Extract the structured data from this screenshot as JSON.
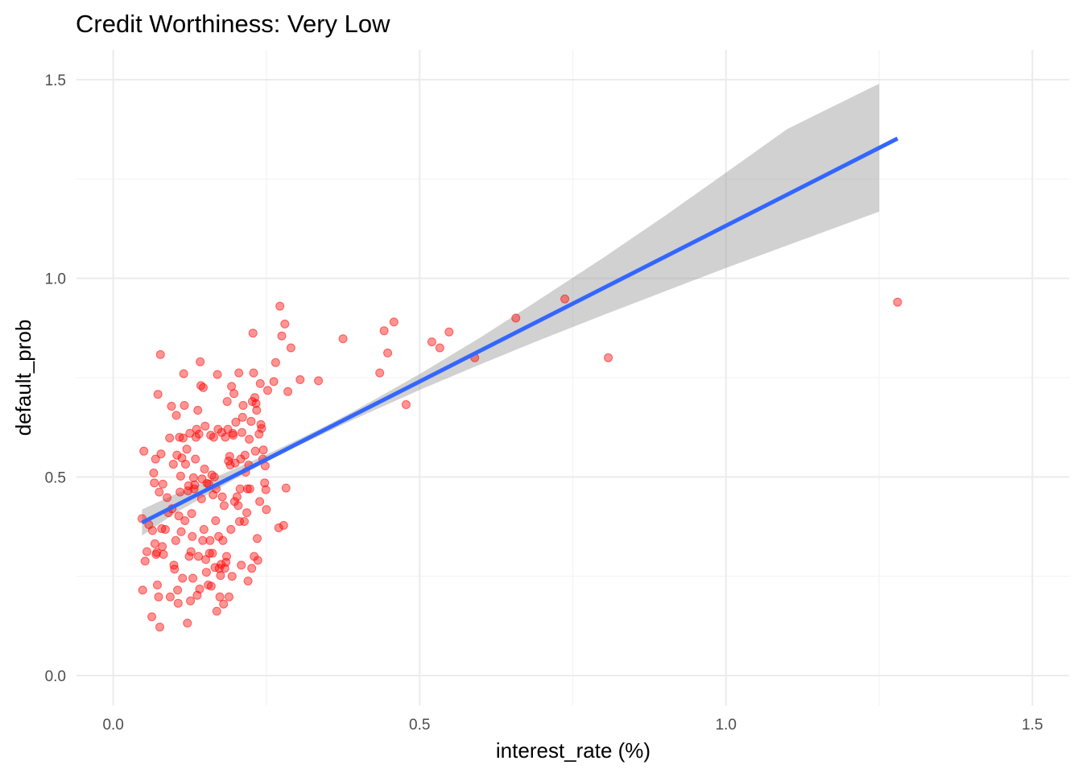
{
  "chart_data": {
    "type": "scatter",
    "title": "Credit Worthiness: Very Low",
    "xlabel": "interest_rate (%)",
    "ylabel": "default_prob",
    "xlim": [
      -0.06,
      1.56
    ],
    "ylim": [
      -0.075,
      1.575
    ],
    "x_ticks": [
      0.0,
      0.5,
      1.0,
      1.5
    ],
    "x_tick_labels": [
      "0.0",
      "0.5",
      "1.0",
      "1.5"
    ],
    "y_ticks": [
      0.0,
      0.5,
      1.0,
      1.5
    ],
    "y_tick_labels": [
      "0.0",
      "0.5",
      "1.0",
      "1.5"
    ],
    "grid": true,
    "legend": "none",
    "colors": {
      "points": "#ff0000",
      "fit_line": "#3366ff",
      "ribbon": "#999999"
    },
    "points": [
      [
        0.047,
        0.395
      ],
      [
        0.048,
        0.215
      ],
      [
        0.05,
        0.565
      ],
      [
        0.052,
        0.288
      ],
      [
        0.055,
        0.312
      ],
      [
        0.058,
        0.38
      ],
      [
        0.063,
        0.148
      ],
      [
        0.064,
        0.365
      ],
      [
        0.066,
        0.51
      ],
      [
        0.067,
        0.485
      ],
      [
        0.068,
        0.332
      ],
      [
        0.069,
        0.545
      ],
      [
        0.07,
        0.305
      ],
      [
        0.071,
        0.31
      ],
      [
        0.072,
        0.228
      ],
      [
        0.073,
        0.708
      ],
      [
        0.074,
        0.198
      ],
      [
        0.075,
        0.462
      ],
      [
        0.076,
        0.122
      ],
      [
        0.077,
        0.808
      ],
      [
        0.078,
        0.558
      ],
      [
        0.079,
        0.37
      ],
      [
        0.08,
        0.325
      ],
      [
        0.081,
        0.482
      ],
      [
        0.082,
        0.305
      ],
      [
        0.085,
        0.368
      ],
      [
        0.088,
        0.448
      ],
      [
        0.09,
        0.41
      ],
      [
        0.092,
        0.598
      ],
      [
        0.093,
        0.198
      ],
      [
        0.095,
        0.678
      ],
      [
        0.096,
        0.42
      ],
      [
        0.098,
        0.532
      ],
      [
        0.099,
        0.278
      ],
      [
        0.1,
        0.268
      ],
      [
        0.102,
        0.34
      ],
      [
        0.103,
        0.655
      ],
      [
        0.104,
        0.555
      ],
      [
        0.105,
        0.215
      ],
      [
        0.106,
        0.182
      ],
      [
        0.107,
        0.402
      ],
      [
        0.108,
        0.6
      ],
      [
        0.109,
        0.462
      ],
      [
        0.11,
        0.502
      ],
      [
        0.111,
        0.362
      ],
      [
        0.112,
        0.548
      ],
      [
        0.113,
        0.245
      ],
      [
        0.114,
        0.598
      ],
      [
        0.115,
        0.76
      ],
      [
        0.116,
        0.68
      ],
      [
        0.117,
        0.39
      ],
      [
        0.118,
        0.532
      ],
      [
        0.12,
        0.57
      ],
      [
        0.121,
        0.132
      ],
      [
        0.122,
        0.465
      ],
      [
        0.123,
        0.478
      ],
      [
        0.124,
        0.3
      ],
      [
        0.125,
        0.61
      ],
      [
        0.126,
        0.188
      ],
      [
        0.127,
        0.312
      ],
      [
        0.128,
        0.408
      ],
      [
        0.129,
        0.35
      ],
      [
        0.13,
        0.245
      ],
      [
        0.131,
        0.498
      ],
      [
        0.132,
        0.47
      ],
      [
        0.133,
        0.48
      ],
      [
        0.134,
        0.545
      ],
      [
        0.135,
        0.6
      ],
      [
        0.136,
        0.62
      ],
      [
        0.137,
        0.202
      ],
      [
        0.138,
        0.668
      ],
      [
        0.139,
        0.3
      ],
      [
        0.14,
        0.608
      ],
      [
        0.141,
        0.218
      ],
      [
        0.142,
        0.79
      ],
      [
        0.143,
        0.73
      ],
      [
        0.144,
        0.445
      ],
      [
        0.145,
        0.495
      ],
      [
        0.146,
        0.34
      ],
      [
        0.147,
        0.725
      ],
      [
        0.148,
        0.368
      ],
      [
        0.149,
        0.52
      ],
      [
        0.15,
        0.628
      ],
      [
        0.151,
        0.292
      ],
      [
        0.152,
        0.26
      ],
      [
        0.153,
        0.484
      ],
      [
        0.155,
        0.228
      ],
      [
        0.156,
        0.482
      ],
      [
        0.157,
        0.308
      ],
      [
        0.158,
        0.34
      ],
      [
        0.159,
        0.605
      ],
      [
        0.16,
        0.225
      ],
      [
        0.161,
        0.505
      ],
      [
        0.162,
        0.308
      ],
      [
        0.163,
        0.455
      ],
      [
        0.164,
        0.6
      ],
      [
        0.165,
        0.5
      ],
      [
        0.166,
        0.272
      ],
      [
        0.167,
        0.39
      ],
      [
        0.168,
        0.47
      ],
      [
        0.169,
        0.162
      ],
      [
        0.17,
        0.758
      ],
      [
        0.171,
        0.62
      ],
      [
        0.172,
        0.35
      ],
      [
        0.173,
        0.27
      ],
      [
        0.174,
        0.198
      ],
      [
        0.175,
        0.252
      ],
      [
        0.176,
        0.28
      ],
      [
        0.177,
        0.612
      ],
      [
        0.178,
        0.45
      ],
      [
        0.179,
        0.34
      ],
      [
        0.18,
        0.18
      ],
      [
        0.181,
        0.428
      ],
      [
        0.182,
        0.27
      ],
      [
        0.183,
        0.6
      ],
      [
        0.184,
        0.285
      ],
      [
        0.185,
        0.3
      ],
      [
        0.186,
        0.69
      ],
      [
        0.187,
        0.62
      ],
      [
        0.188,
        0.54
      ],
      [
        0.189,
        0.198
      ],
      [
        0.19,
        0.552
      ],
      [
        0.191,
        0.53
      ],
      [
        0.192,
        0.368
      ],
      [
        0.193,
        0.728
      ],
      [
        0.194,
        0.25
      ],
      [
        0.195,
        0.61
      ],
      [
        0.196,
        0.605
      ],
      [
        0.197,
        0.71
      ],
      [
        0.198,
        0.438
      ],
      [
        0.199,
        0.535
      ],
      [
        0.2,
        0.638
      ],
      [
        0.202,
        0.45
      ],
      [
        0.204,
        0.428
      ],
      [
        0.205,
        0.762
      ],
      [
        0.206,
        0.388
      ],
      [
        0.207,
        0.47
      ],
      [
        0.208,
        0.545
      ],
      [
        0.209,
        0.278
      ],
      [
        0.21,
        0.612
      ],
      [
        0.211,
        0.65
      ],
      [
        0.212,
        0.68
      ],
      [
        0.214,
        0.388
      ],
      [
        0.215,
        0.555
      ],
      [
        0.216,
        0.512
      ],
      [
        0.218,
        0.41
      ],
      [
        0.219,
        0.47
      ],
      [
        0.22,
        0.238
      ],
      [
        0.221,
        0.53
      ],
      [
        0.222,
        0.595
      ],
      [
        0.223,
        0.47
      ],
      [
        0.225,
        0.64
      ],
      [
        0.226,
        0.27
      ],
      [
        0.227,
        0.69
      ],
      [
        0.228,
        0.862
      ],
      [
        0.229,
        0.762
      ],
      [
        0.23,
        0.3
      ],
      [
        0.231,
        0.7
      ],
      [
        0.232,
        0.565
      ],
      [
        0.233,
        0.685
      ],
      [
        0.234,
        0.668
      ],
      [
        0.235,
        0.345
      ],
      [
        0.236,
        0.29
      ],
      [
        0.238,
        0.608
      ],
      [
        0.239,
        0.438
      ],
      [
        0.24,
        0.735
      ],
      [
        0.241,
        0.632
      ],
      [
        0.242,
        0.622
      ],
      [
        0.244,
        0.545
      ],
      [
        0.245,
        0.568
      ],
      [
        0.247,
        0.485
      ],
      [
        0.248,
        0.528
      ],
      [
        0.249,
        0.468
      ],
      [
        0.25,
        0.418
      ],
      [
        0.252,
        0.718
      ],
      [
        0.262,
        0.74
      ],
      [
        0.265,
        0.788
      ],
      [
        0.27,
        0.372
      ],
      [
        0.272,
        0.93
      ],
      [
        0.275,
        0.855
      ],
      [
        0.278,
        0.378
      ],
      [
        0.28,
        0.885
      ],
      [
        0.282,
        0.472
      ],
      [
        0.285,
        0.715
      ],
      [
        0.29,
        0.825
      ],
      [
        0.305,
        0.745
      ],
      [
        0.335,
        0.742
      ],
      [
        0.375,
        0.848
      ],
      [
        0.435,
        0.762
      ],
      [
        0.442,
        0.868
      ],
      [
        0.448,
        0.812
      ],
      [
        0.458,
        0.89
      ],
      [
        0.478,
        0.682
      ],
      [
        0.52,
        0.84
      ],
      [
        0.533,
        0.825
      ],
      [
        0.548,
        0.865
      ],
      [
        0.59,
        0.8
      ],
      [
        0.657,
        0.9
      ],
      [
        0.737,
        0.948
      ],
      [
        0.808,
        0.8
      ],
      [
        1.28,
        0.94
      ]
    ],
    "fit": {
      "x": [
        0.047,
        1.28
      ],
      "y": [
        0.385,
        1.352
      ]
    },
    "ribbon": {
      "x": [
        0.047,
        0.1,
        0.15,
        0.2,
        0.25,
        0.3,
        0.35,
        0.4,
        0.5,
        0.6,
        0.7,
        0.8,
        0.9,
        1.0,
        1.1,
        1.25
      ],
      "lower": [
        0.352,
        0.408,
        0.452,
        0.496,
        0.538,
        0.577,
        0.614,
        0.65,
        0.719,
        0.784,
        0.847,
        0.908,
        0.967,
        1.026,
        1.083,
        1.168
      ],
      "upper": [
        0.418,
        0.456,
        0.488,
        0.522,
        0.556,
        0.593,
        0.631,
        0.672,
        0.759,
        0.852,
        0.951,
        1.052,
        1.157,
        1.266,
        1.376,
        1.49
      ]
    }
  }
}
